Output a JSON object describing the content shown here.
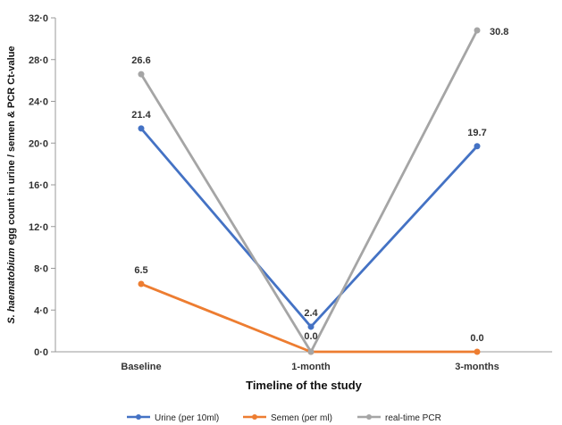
{
  "chart_data": {
    "type": "line",
    "categories": [
      "Baseline",
      "1-month",
      "3-months"
    ],
    "series": [
      {
        "name": "Urine (per 10ml)",
        "values": [
          21.4,
          2.4,
          19.7
        ],
        "labels": [
          "21.4",
          "2.4",
          "19.7"
        ],
        "color": "#4472C4"
      },
      {
        "name": "Semen (per ml)",
        "values": [
          6.5,
          0.0,
          0.0
        ],
        "labels": [
          "6.5",
          "",
          "0.0"
        ],
        "color": "#ED7D31"
      },
      {
        "name": "real-time PCR",
        "values": [
          26.6,
          0.0,
          30.8
        ],
        "labels": [
          "26.6",
          "0.0",
          "30.8"
        ],
        "color": "#A5A5A5"
      }
    ],
    "yticks": [
      "0·0",
      "4·0",
      "8·0",
      "12·0",
      "16·0",
      "20·0",
      "24·0",
      "28·0",
      "32·0"
    ],
    "ylim": [
      0,
      32
    ],
    "ylabel_italic": "S. haematobium",
    "ylabel_rest": " egg count in urine / semen & PCR Ct-value",
    "xlabel": "Timeline of the study",
    "legend_position": "bottom",
    "grid": false
  }
}
